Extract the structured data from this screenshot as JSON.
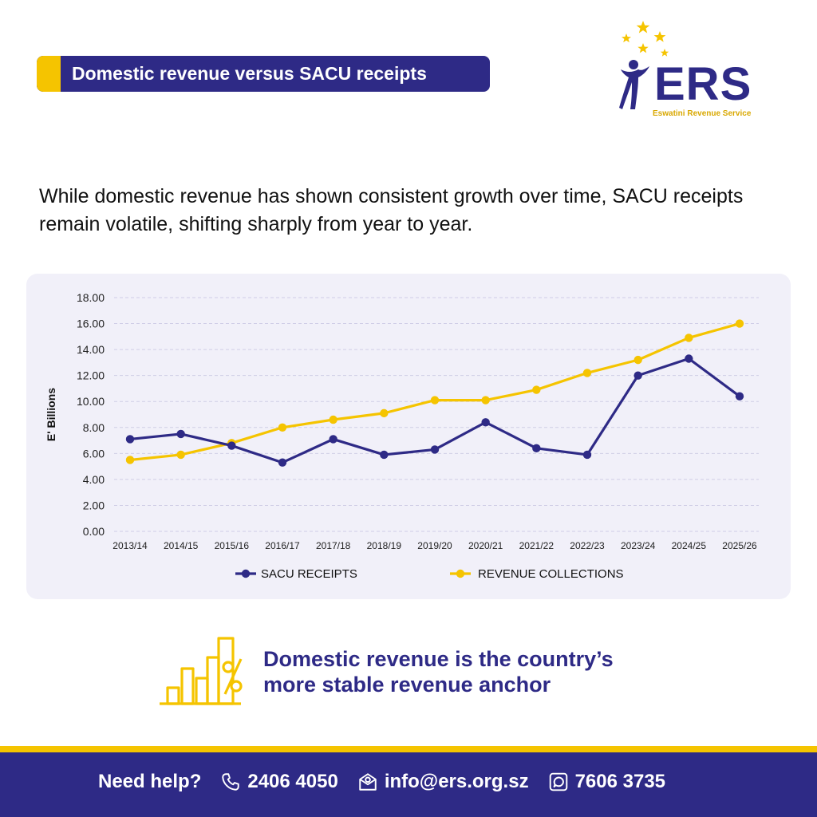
{
  "header": {
    "title": "Domestic revenue versus SACU receipts"
  },
  "logo": {
    "name": "ERS",
    "subtitle": "Eswatini Revenue Service"
  },
  "intro": "While domestic revenue has shown consistent growth over time, SACU receipts remain volatile, shifting sharply from year to year.",
  "chart_data": {
    "type": "line",
    "title": "",
    "xlabel": "",
    "ylabel": "E' Billions",
    "ylim": [
      0,
      18
    ],
    "ytick_step": 2,
    "ytick_labels": [
      "0.00",
      "2.00",
      "4.00",
      "6.00",
      "8.00",
      "10.00",
      "12.00",
      "14.00",
      "16.00",
      "18.00"
    ],
    "grid": true,
    "legend": "bottom",
    "categories": [
      "2013/14",
      "2014/15",
      "2015/16",
      "2016/17",
      "2017/18",
      "2018/19",
      "2019/20",
      "2020/21",
      "2021/22",
      "2022/23",
      "2023/24",
      "2024/25",
      "2025/26"
    ],
    "series": [
      {
        "name": "SACU RECEIPTS",
        "color": "#2e2a86",
        "values": [
          7.1,
          7.5,
          6.6,
          5.3,
          7.1,
          5.9,
          6.3,
          8.4,
          6.4,
          5.9,
          12.0,
          13.3,
          10.4
        ]
      },
      {
        "name": "REVENUE COLLECTIONS",
        "color": "#f5c400",
        "values": [
          5.5,
          5.9,
          6.8,
          8.0,
          8.6,
          9.1,
          10.1,
          10.1,
          10.9,
          12.2,
          13.2,
          14.9,
          16.0
        ]
      }
    ]
  },
  "key_message": {
    "line1": "Domestic revenue is the country’s",
    "line2": "more stable revenue anchor"
  },
  "footer": {
    "help_label": "Need help?",
    "phone": "2406 4050",
    "email": "info@ers.org.sz",
    "whatsapp": "7606 3735"
  },
  "colors": {
    "brand_purple": "#2e2a86",
    "brand_yellow": "#f5c400",
    "card_bg": "#f1f0f9"
  }
}
